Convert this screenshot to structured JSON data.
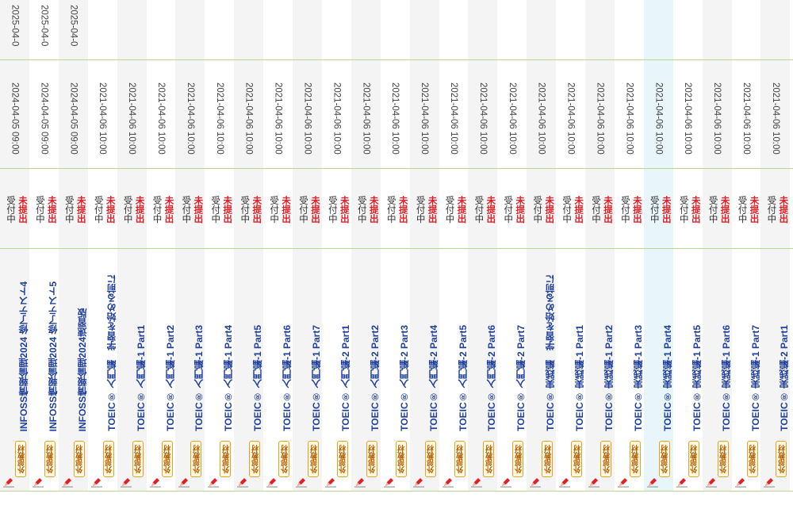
{
  "labels": {
    "external": "外部教材",
    "accepting": "受付中",
    "not_submitted": "未提出"
  },
  "colors": {
    "title": "#1f3f9a",
    "not_submitted": "#e21f26",
    "badge_border": "#e2a227",
    "row_divider": "#b6d98f",
    "highlight": "#e8f6fc"
  },
  "rows": [
    {
      "title": "INFOSS情報倫理2024 修了テスト4",
      "start": "2025-04-0",
      "due": "2024-04-05 09:00"
    },
    {
      "title": "INFOSS情報倫理2024 修了テスト5",
      "start": "2025-04-0",
      "due": "2024-04-05 09:00"
    },
    {
      "title": "INFOSS情報倫理2024速習版",
      "start": "2025-04-0",
      "due": "2024-04-05 09:00"
    },
    {
      "title": "TOEIC® 入門編　学習を始める前に",
      "start": "",
      "due": "2021-04-06 10:00"
    },
    {
      "title": "TOEIC® 入門編-1 Part1",
      "start": "",
      "due": "2021-04-06 10:00"
    },
    {
      "title": "TOEIC® 入門編-1 Part2",
      "start": "",
      "due": "2021-04-06 10:00"
    },
    {
      "title": "TOEIC® 入門編-1 Part3",
      "start": "",
      "due": "2021-04-06 10:00"
    },
    {
      "title": "TOEIC® 入門編-1 Part4",
      "start": "",
      "due": "2021-04-06 10:00"
    },
    {
      "title": "TOEIC® 入門編-1 Part5",
      "start": "",
      "due": "2021-04-06 10:00"
    },
    {
      "title": "TOEIC® 入門編-1 Part6",
      "start": "",
      "due": "2021-04-06 10:00"
    },
    {
      "title": "TOEIC® 入門編-1 Part7",
      "start": "",
      "due": "2021-04-06 10:00"
    },
    {
      "title": "TOEIC® 入門編-2 Part1",
      "start": "",
      "due": "2021-04-06 10:00"
    },
    {
      "title": "TOEIC® 入門編-2 Part2",
      "start": "",
      "due": "2021-04-06 10:00"
    },
    {
      "title": "TOEIC® 入門編-2 Part3",
      "start": "",
      "due": "2021-04-06 10:00"
    },
    {
      "title": "TOEIC® 入門編-2 Part4",
      "start": "",
      "due": "2021-04-06 10:00"
    },
    {
      "title": "TOEIC® 入門編-2 Part5",
      "start": "",
      "due": "2021-04-06 10:00"
    },
    {
      "title": "TOEIC® 入門編-2 Part6",
      "start": "",
      "due": "2021-04-06 10:00"
    },
    {
      "title": "TOEIC® 入門編-2 Part7",
      "start": "",
      "due": "2021-04-06 10:00"
    },
    {
      "title": "TOEIC® 実践編　学習を始める前に",
      "start": "",
      "due": "2021-04-06 10:00"
    },
    {
      "title": "TOEIC® 実践編-1 Part1",
      "start": "",
      "due": "2021-04-06 10:00"
    },
    {
      "title": "TOEIC® 実践編-1 Part2",
      "start": "",
      "due": "2021-04-06 10:00"
    },
    {
      "title": "TOEIC® 実践編-1 Part3",
      "start": "",
      "due": "2021-04-06 10:00"
    },
    {
      "title": "TOEIC® 実践編-1 Part4",
      "start": "",
      "due": "2021-04-06 10:00",
      "highlighted": true
    },
    {
      "title": "TOEIC® 実践編-1 Part5",
      "start": "",
      "due": "2021-04-06 10:00"
    },
    {
      "title": "TOEIC® 実践編-1 Part6",
      "start": "",
      "due": "2021-04-06 10:00"
    },
    {
      "title": "TOEIC® 実践編-1 Part7",
      "start": "",
      "due": "2021-04-06 10:00"
    },
    {
      "title": "TOEIC® 実践編-2 Part1",
      "start": "",
      "due": "2021-04-06 10:00"
    }
  ]
}
